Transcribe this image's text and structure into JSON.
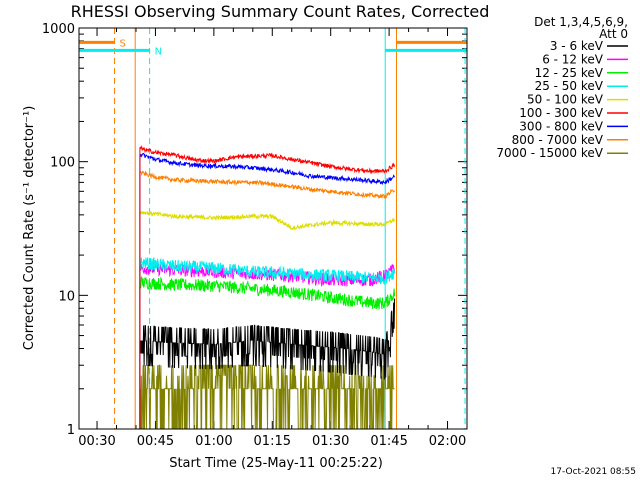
{
  "chart_data": {
    "type": "line",
    "title": "RHESSI Observing Summary Count Rates, Corrected",
    "ylabel": "Corrected Count Rate (s⁻¹ detector⁻¹)",
    "xlabel": "Start Time (25-May-11 00:25:22)",
    "yscale": "log",
    "ylim": [
      1,
      1000
    ],
    "xlim_minutes": [
      25.37,
      125
    ],
    "x_ticks": [
      {
        "m": 30,
        "label": "00:30"
      },
      {
        "m": 45,
        "label": "00:45"
      },
      {
        "m": 60,
        "label": "01:00"
      },
      {
        "m": 75,
        "label": "01:15"
      },
      {
        "m": 90,
        "label": "01:30"
      },
      {
        "m": 105,
        "label": "01:45"
      },
      {
        "m": 120,
        "label": "02:00"
      }
    ],
    "y_ticks": [
      {
        "v": 1,
        "label": "1"
      },
      {
        "v": 10,
        "label": "10"
      },
      {
        "v": 100,
        "label": "100"
      },
      {
        "v": 1000,
        "label": "1000"
      }
    ],
    "legend_header": [
      "Det 1,3,4,5,6,9,",
      "Att 0"
    ],
    "series": [
      {
        "name": "3 - 6 keV",
        "color": "#000000",
        "x": [
          41,
          50,
          60,
          70,
          80,
          90,
          100,
          104,
          106.5
        ],
        "y": [
          4.6,
          4.4,
          4.3,
          4.6,
          4.3,
          4.1,
          3.8,
          3.6,
          7.5
        ]
      },
      {
        "name": "6 - 12 keV",
        "color": "#ff00ff",
        "x": [
          41,
          50,
          60,
          70,
          80,
          90,
          100,
          104,
          106.5
        ],
        "y": [
          16,
          15.5,
          15,
          14.5,
          14,
          13,
          13,
          14,
          16
        ]
      },
      {
        "name": "12 - 25 keV",
        "color": "#00ee00",
        "x": [
          41,
          50,
          60,
          70,
          80,
          90,
          100,
          104,
          106.5
        ],
        "y": [
          12.5,
          12,
          11.8,
          11.2,
          10.6,
          9.6,
          8.8,
          8.7,
          10.5
        ]
      },
      {
        "name": "25 - 50 keV",
        "color": "#00eeee",
        "x": [
          41,
          50,
          60,
          70,
          80,
          90,
          100,
          104,
          106.5
        ],
        "y": [
          17.5,
          16.5,
          16,
          15,
          14.5,
          14,
          13.5,
          13.5,
          15
        ]
      },
      {
        "name": "50 - 100 keV",
        "color": "#dddd00",
        "x": [
          41,
          50,
          60,
          70,
          75,
          80,
          90,
          100,
          104,
          106.5
        ],
        "y": [
          42,
          39,
          38,
          39,
          39,
          32,
          35,
          34,
          34,
          37
        ]
      },
      {
        "name": "100 - 300 keV",
        "color": "#ff0000",
        "x": [
          41,
          45,
          50,
          55,
          60,
          65,
          70,
          75,
          80,
          85,
          90,
          95,
          100,
          104,
          106.5
        ],
        "y": [
          126,
          117,
          112,
          103,
          101,
          108,
          110,
          111,
          104,
          98,
          92,
          88,
          85,
          85,
          95
        ]
      },
      {
        "name": "300 - 800 keV",
        "color": "#0000ff",
        "x": [
          41,
          45,
          50,
          55,
          60,
          65,
          70,
          75,
          80,
          85,
          90,
          95,
          100,
          104,
          106.5
        ],
        "y": [
          114,
          104,
          98,
          94,
          93,
          92,
          90,
          87,
          83,
          78,
          76,
          74,
          72,
          70,
          78
        ]
      },
      {
        "name": "800 - 7000 keV",
        "color": "#ff8000",
        "x": [
          41,
          45,
          50,
          55,
          60,
          65,
          70,
          75,
          80,
          85,
          90,
          95,
          100,
          104,
          106.5
        ],
        "y": [
          83,
          77,
          73,
          72,
          71,
          70,
          70,
          68,
          65,
          62,
          60,
          58,
          56,
          55,
          62
        ]
      },
      {
        "name": "7000 - 15000 keV",
        "color": "#808000",
        "x": [
          41,
          45,
          50,
          55,
          60,
          65,
          70,
          75,
          80,
          85,
          90,
          95,
          100,
          104,
          106.5
        ],
        "y": [
          2.2,
          2.0,
          2.0,
          2.0,
          2.1,
          2.2,
          2.2,
          2.1,
          2.0,
          2.0,
          1.9,
          1.8,
          1.8,
          1.8,
          2.0
        ]
      }
    ],
    "flags": [
      {
        "label": "S",
        "color": "#ff8000",
        "y": 780,
        "segments": [
          [
            25.5,
            34.5
          ],
          [
            107,
            125
          ]
        ]
      },
      {
        "label": "N",
        "color": "#00eeee",
        "y": 680,
        "segments": [
          [
            25.5,
            43.5
          ],
          [
            104,
            125
          ]
        ]
      }
    ],
    "vlines": [
      {
        "m": 34.5,
        "color": "#ff8000",
        "style": "dashed"
      },
      {
        "m": 43.5,
        "color": "#00eeee",
        "style": "dashed"
      },
      {
        "m": 39.8,
        "color": "#ff8000",
        "style": "solid"
      },
      {
        "m": 104.0,
        "color": "#00eeee",
        "style": "solid"
      },
      {
        "m": 106.9,
        "color": "#ff8000",
        "style": "solid"
      },
      {
        "m": 124.5,
        "color": "#00eeee",
        "style": "dashed"
      }
    ],
    "timestamp": "17-Oct-2021 08:55"
  }
}
